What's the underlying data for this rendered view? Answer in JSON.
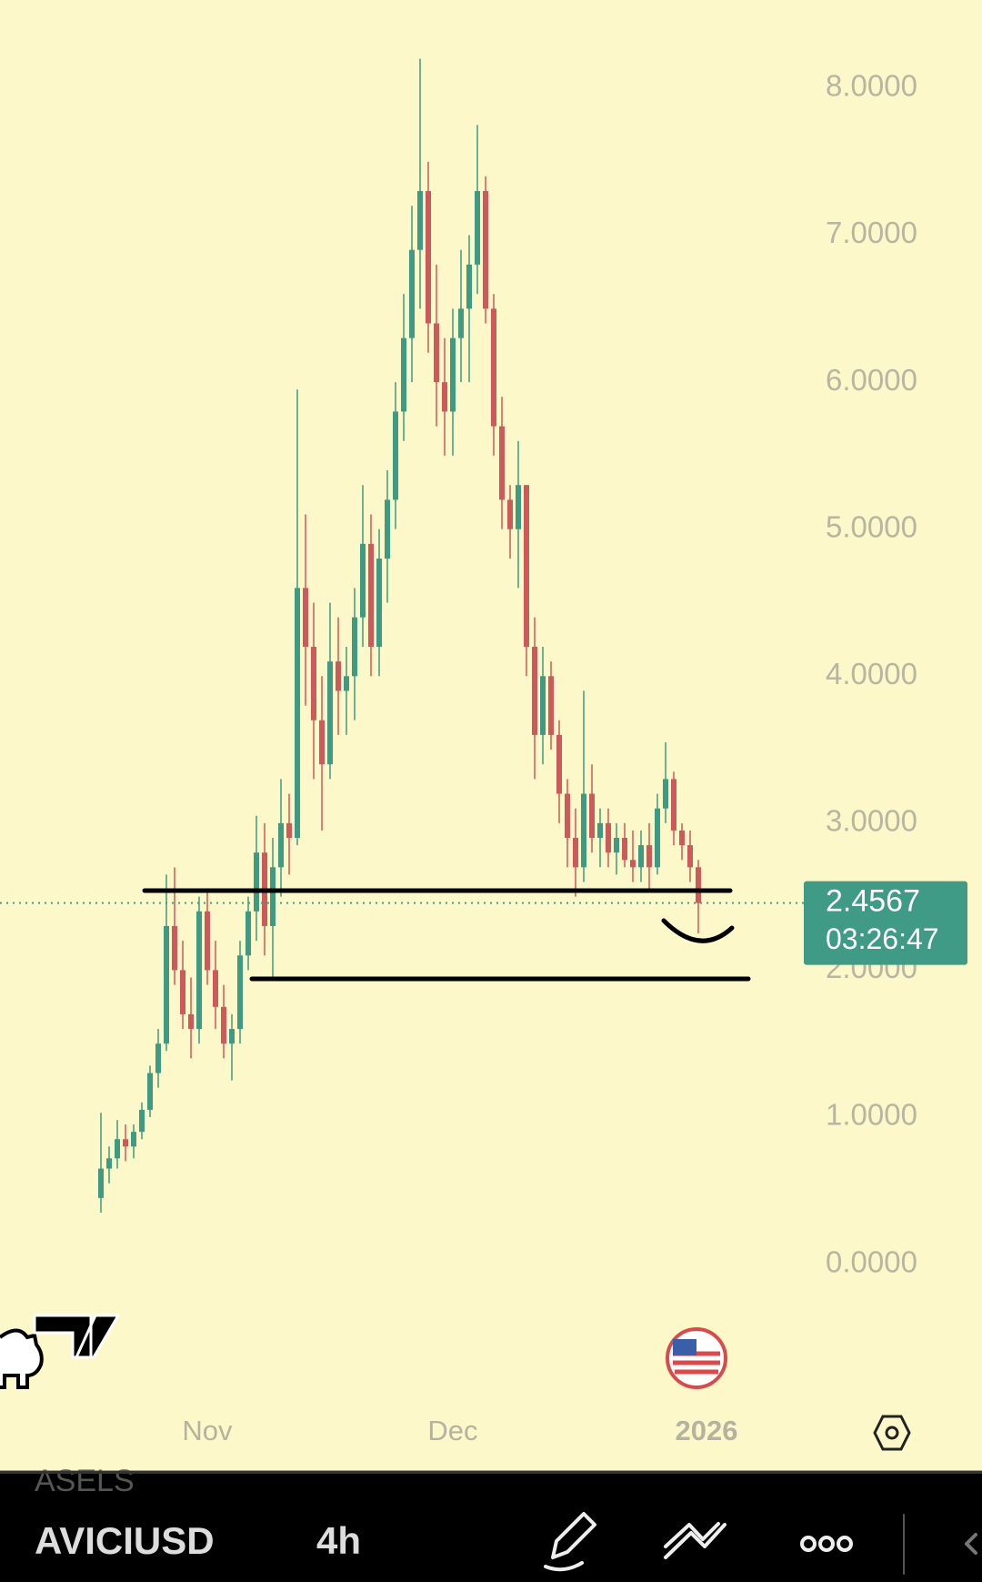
{
  "chart_data": {
    "type": "candlestick",
    "categories": [
      null,
      null,
      null,
      null,
      null,
      null,
      null,
      null,
      null,
      null,
      null,
      null,
      null,
      "Nov",
      null,
      null,
      null,
      null,
      null,
      null,
      null,
      null,
      null,
      null,
      null,
      null,
      null,
      null,
      null,
      null,
      null,
      null,
      null,
      null,
      null,
      null,
      null,
      null,
      null,
      null,
      null,
      null,
      null,
      "Dec",
      null,
      null,
      null,
      null,
      null,
      null,
      null,
      null,
      null,
      null,
      null,
      null,
      null,
      null,
      null,
      null,
      null,
      null,
      null,
      null,
      null,
      null,
      null,
      null,
      null,
      null,
      null,
      null,
      null,
      null,
      "2026"
    ],
    "open": [
      0.45,
      0.65,
      0.72,
      0.85,
      0.8,
      0.9,
      1.05,
      1.3,
      1.5,
      2.3,
      2.0,
      1.7,
      1.6,
      2.4,
      2.0,
      1.75,
      1.5,
      1.6,
      2.1,
      2.4,
      2.8,
      2.3,
      2.7,
      3.0,
      2.9,
      4.6,
      4.2,
      3.7,
      3.4,
      4.1,
      3.9,
      4.0,
      4.4,
      4.9,
      4.2,
      4.8,
      5.2,
      5.8,
      6.3,
      6.9,
      7.3,
      6.4,
      6.0,
      5.8,
      6.3,
      6.5,
      6.8,
      7.3,
      6.5,
      5.7,
      5.2,
      5.0,
      5.3,
      4.2,
      3.6,
      4.0,
      3.6,
      3.2,
      2.9,
      2.7,
      3.2,
      2.9,
      3.0,
      2.8,
      2.9,
      2.75,
      2.7,
      2.85,
      2.7,
      3.1,
      3.3,
      2.95,
      2.85,
      2.7,
      null
    ],
    "high": [
      1.03,
      0.8,
      0.98,
      0.95,
      0.95,
      1.1,
      1.35,
      1.6,
      2.65,
      2.7,
      2.2,
      1.95,
      2.5,
      2.55,
      2.2,
      1.9,
      1.7,
      2.2,
      2.5,
      3.05,
      3.0,
      2.9,
      3.3,
      3.2,
      5.95,
      5.1,
      4.5,
      4.0,
      4.5,
      4.4,
      4.2,
      4.6,
      5.3,
      5.1,
      5.0,
      5.4,
      6.0,
      6.6,
      7.2,
      8.2,
      7.5,
      6.8,
      6.3,
      6.5,
      6.9,
      7.0,
      7.75,
      7.4,
      6.6,
      5.9,
      5.3,
      5.6,
      5.3,
      4.4,
      4.2,
      4.1,
      3.7,
      3.3,
      3.1,
      3.9,
      3.4,
      3.1,
      3.1,
      3.0,
      3.0,
      2.95,
      2.95,
      3.0,
      3.2,
      3.55,
      3.35,
      3.0,
      2.95,
      2.75,
      null
    ],
    "low": [
      0.35,
      0.55,
      0.65,
      0.7,
      0.72,
      0.85,
      1.0,
      1.2,
      1.45,
      1.9,
      1.6,
      1.4,
      1.5,
      1.9,
      1.6,
      1.4,
      1.25,
      1.5,
      2.0,
      2.2,
      2.1,
      1.95,
      2.5,
      2.65,
      2.85,
      3.8,
      3.3,
      2.95,
      3.3,
      3.6,
      3.6,
      3.7,
      4.2,
      4.0,
      4.0,
      4.5,
      5.0,
      5.6,
      6.0,
      6.5,
      6.2,
      5.7,
      5.5,
      5.5,
      6.0,
      6.0,
      6.6,
      6.4,
      5.5,
      5.0,
      4.8,
      4.6,
      4.0,
      3.3,
      3.4,
      3.5,
      3.0,
      2.7,
      2.5,
      2.6,
      2.8,
      2.7,
      2.7,
      2.65,
      2.7,
      2.6,
      2.6,
      2.55,
      2.65,
      3.0,
      2.85,
      2.75,
      2.6,
      2.25,
      null
    ],
    "close": [
      0.65,
      0.72,
      0.85,
      0.8,
      0.9,
      1.05,
      1.3,
      1.5,
      2.3,
      2.0,
      1.7,
      1.6,
      2.4,
      2.0,
      1.75,
      1.5,
      1.6,
      2.1,
      2.4,
      2.8,
      2.3,
      2.7,
      3.0,
      2.9,
      4.6,
      4.2,
      3.7,
      3.4,
      4.1,
      3.9,
      4.0,
      4.4,
      4.9,
      4.2,
      4.8,
      5.2,
      5.8,
      6.3,
      6.9,
      7.3,
      6.4,
      6.0,
      5.8,
      6.3,
      6.5,
      6.8,
      7.3,
      6.5,
      5.7,
      5.2,
      5.0,
      5.3,
      4.2,
      3.6,
      4.0,
      3.6,
      3.2,
      2.9,
      2.7,
      3.2,
      2.9,
      3.0,
      2.8,
      2.9,
      2.75,
      2.7,
      2.85,
      2.7,
      3.1,
      3.3,
      2.95,
      2.85,
      2.7,
      2.4567,
      null
    ],
    "up_color": "#3e9a83",
    "down_color": "#cc5a5a",
    "ylim": [
      -0.9,
      8.6
    ],
    "yticks": [
      {
        "value": 0,
        "label": "0.0000"
      },
      {
        "value": 1,
        "label": "1.0000"
      },
      {
        "value": 2,
        "label": "2.0000"
      },
      {
        "value": 3,
        "label": "3.0000"
      },
      {
        "value": 4,
        "label": "4.0000"
      },
      {
        "value": 5,
        "label": "5.0000"
      },
      {
        "value": 6,
        "label": "6.0000"
      },
      {
        "value": 7,
        "label": "7.0000"
      },
      {
        "value": 8,
        "label": "8.0000"
      }
    ],
    "last_price": 2.4567,
    "countdown": "03:26:47",
    "price_tag_color": "#3f9a86"
  },
  "toolbar": {
    "watchlist_peek": "ASELS",
    "symbol": "AVICIUSD",
    "interval": "4h"
  }
}
